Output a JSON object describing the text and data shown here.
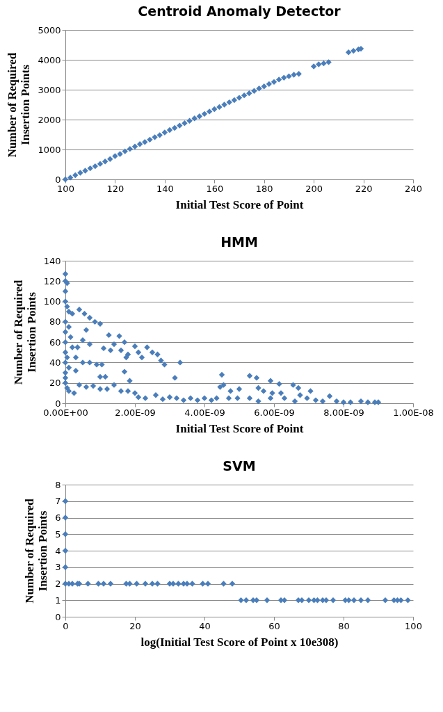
{
  "chart_data": [
    {
      "type": "scatter",
      "title": "Centroid Anomaly Detector",
      "xlabel": "Initial Test Score of Point",
      "ylabel": "Number of Required Insertion Points",
      "color": "#4a7ebb",
      "marker": "diamond",
      "grid": "y",
      "xlim": [
        100,
        240
      ],
      "xticks": [
        100,
        120,
        140,
        160,
        180,
        200,
        220,
        240
      ],
      "ylim": [
        0,
        5000
      ],
      "yticks": [
        0,
        1000,
        2000,
        3000,
        4000,
        5000
      ],
      "x": [
        100,
        102,
        104,
        106,
        108,
        110,
        112,
        114,
        116,
        118,
        120,
        122,
        124,
        126,
        128,
        130,
        132,
        134,
        136,
        138,
        140,
        142,
        144,
        146,
        148,
        150,
        152,
        154,
        156,
        158,
        160,
        162,
        164,
        166,
        168,
        170,
        172,
        174,
        176,
        178,
        180,
        182,
        184,
        186,
        188,
        190,
        192,
        194,
        200,
        202,
        204,
        206,
        214,
        216,
        218,
        219
      ],
      "values": [
        0,
        60,
        140,
        220,
        290,
        370,
        440,
        520,
        600,
        680,
        780,
        850,
        940,
        1020,
        1100,
        1180,
        1250,
        1330,
        1410,
        1480,
        1570,
        1650,
        1720,
        1800,
        1880,
        1960,
        2040,
        2110,
        2190,
        2270,
        2350,
        2420,
        2500,
        2580,
        2650,
        2730,
        2810,
        2880,
        2960,
        3040,
        3110,
        3190,
        3260,
        3340,
        3400,
        3450,
        3500,
        3530,
        3780,
        3850,
        3880,
        3920,
        4250,
        4300,
        4350,
        4370
      ]
    },
    {
      "type": "scatter",
      "title": "HMM",
      "xlabel": "Initial Test Score of Point",
      "ylabel": "Number of Required Insertion Points",
      "color": "#4a7ebb",
      "marker": "diamond",
      "grid": "y",
      "xlim": [
        0,
        1e-08
      ],
      "xticks": [
        {
          "value": 0,
          "label": "0.00E+00"
        },
        {
          "value": 2e-09,
          "label": "2.00E-09"
        },
        {
          "value": 4e-09,
          "label": "4.00E-09"
        },
        {
          "value": 6e-09,
          "label": "6.00E-09"
        },
        {
          "value": 8e-09,
          "label": "8.00E-09"
        },
        {
          "value": 1e-08,
          "label": "1.00E-08"
        }
      ],
      "ylim": [
        0,
        140
      ],
      "yticks": [
        0,
        20,
        40,
        60,
        80,
        100,
        120,
        140
      ],
      "x": [
        0,
        0,
        5e-11,
        0,
        0,
        5e-11,
        1e-10,
        2e-10,
        0,
        1e-10,
        0,
        1.5e-10,
        0,
        2e-10,
        0,
        5e-11,
        0,
        1e-10,
        0,
        0,
        0,
        5e-11,
        1e-10,
        2.5e-10,
        4e-10,
        5.5e-10,
        7e-10,
        8.5e-10,
        1e-09,
        6e-10,
        5e-10,
        7e-10,
        3.5e-10,
        3e-10,
        5e-10,
        7e-10,
        9e-10,
        1.05e-09,
        3e-10,
        1e-09,
        1.15e-09,
        4e-10,
        6e-10,
        8e-10,
        1e-09,
        1.2e-09,
        1.4e-09,
        1.6e-09,
        1.8e-09,
        2e-09,
        1.25e-09,
        1.55e-09,
        1.7e-09,
        1.4e-09,
        1.1e-09,
        1.3e-09,
        1.6e-09,
        1.8e-09,
        2e-09,
        2.1e-09,
        2.2e-09,
        2.35e-09,
        2.5e-09,
        2.65e-09,
        2.75e-09,
        2.85e-09,
        3.3e-09,
        1.75e-09,
        1.7e-09,
        1.85e-09,
        3.15e-09,
        2.1e-09,
        2.3e-09,
        2.6e-09,
        2.8e-09,
        3e-09,
        3.2e-09,
        3.4e-09,
        3.6e-09,
        3.8e-09,
        4e-09,
        4.2e-09,
        4.35e-09,
        4.45e-09,
        4.5e-09,
        4.55e-09,
        4.75e-09,
        4.7e-09,
        5e-09,
        4.95e-09,
        5.3e-09,
        5.5e-09,
        5.55e-09,
        5.7e-09,
        5.3e-09,
        5.55e-09,
        5.9e-09,
        5.95e-09,
        5.9e-09,
        6.15e-09,
        6.2e-09,
        6.3e-09,
        6.55e-09,
        6.7e-09,
        6.75e-09,
        6.6e-09,
        6.95e-09,
        7.05e-09,
        7.2e-09,
        7.4e-09,
        7.6e-09,
        7.8e-09,
        8e-09,
        8.2e-09,
        8.5e-09,
        8.7e-09,
        8.9e-09,
        9e-09
      ],
      "values": [
        127,
        120,
        118,
        110,
        100,
        95,
        90,
        88,
        80,
        75,
        70,
        65,
        60,
        55,
        50,
        45,
        40,
        35,
        30,
        25,
        20,
        15,
        12,
        10,
        92,
        88,
        84,
        80,
        78,
        72,
        62,
        58,
        55,
        45,
        40,
        40,
        38,
        38,
        32,
        26,
        26,
        18,
        16,
        17,
        14,
        14,
        18,
        12,
        12,
        10,
        67,
        66,
        60,
        58,
        54,
        52,
        52,
        48,
        56,
        50,
        45,
        55,
        50,
        48,
        42,
        38,
        40,
        45,
        31,
        22,
        25,
        6,
        5,
        8,
        4,
        6,
        5,
        3,
        5,
        3,
        5,
        3,
        5,
        16,
        28,
        18,
        12,
        5,
        14,
        5,
        27,
        25,
        15,
        12,
        5,
        2,
        22,
        10,
        5,
        19,
        10,
        5,
        18,
        15,
        8,
        2,
        5,
        12,
        3,
        2,
        7,
        2,
        1,
        1,
        2,
        1,
        1,
        1
      ]
    },
    {
      "type": "scatter",
      "title": "SVM",
      "xlabel": "log(Initial Test Score of Point x 10e308)",
      "ylabel": "Number of Required Insertion Points",
      "color": "#4a7ebb",
      "marker": "diamond",
      "grid": "y",
      "xlim": [
        0,
        100
      ],
      "xticks": [
        0,
        20,
        40,
        60,
        80,
        100
      ],
      "ylim": [
        0,
        8
      ],
      "yticks": [
        0,
        1,
        2,
        3,
        4,
        5,
        6,
        7,
        8
      ],
      "x": [
        0,
        0,
        0,
        0,
        0,
        0,
        1,
        2,
        3.5,
        4,
        6.5,
        9.5,
        11,
        13,
        17.5,
        18.5,
        20.5,
        23,
        25,
        26.5,
        30,
        31,
        32.5,
        34,
        35,
        36.5,
        39.5,
        41,
        45.5,
        48,
        50.5,
        52,
        54,
        55,
        58,
        62,
        63,
        67,
        68,
        70,
        71.5,
        72.5,
        74,
        75,
        77,
        80.5,
        81.5,
        83,
        85,
        87,
        92,
        94.5,
        95.5,
        96.5,
        98.5
      ],
      "values": [
        7,
        6,
        5,
        4,
        3,
        2,
        2,
        2,
        2,
        2,
        2,
        2,
        2,
        2,
        2,
        2,
        2,
        2,
        2,
        2,
        2,
        2,
        2,
        2,
        2,
        2,
        2,
        2,
        2,
        2,
        1,
        1,
        1,
        1,
        1,
        1,
        1,
        1,
        1,
        1,
        1,
        1,
        1,
        1,
        1,
        1,
        1,
        1,
        1,
        1,
        1,
        1,
        1,
        1,
        1
      ]
    }
  ]
}
